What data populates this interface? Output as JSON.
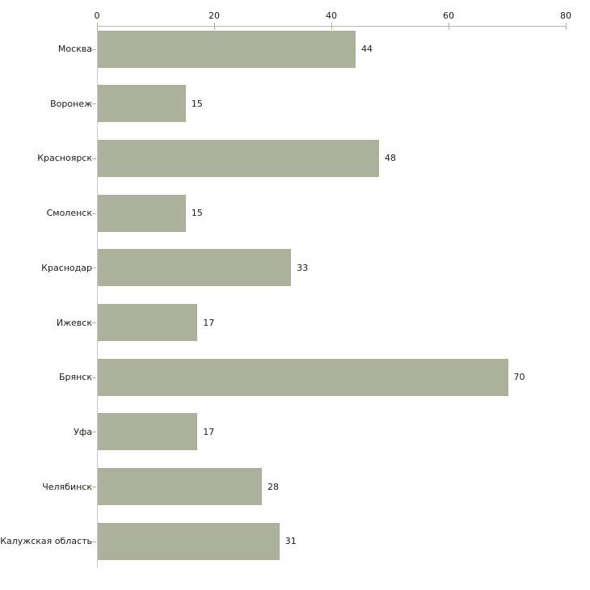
{
  "chart_data": {
    "type": "bar",
    "orientation": "horizontal",
    "title": "",
    "xlabel": "",
    "ylabel": "",
    "categories": [
      "Москва",
      "Воронеж",
      "Красноярск",
      "Смоленск",
      "Краснодар",
      "Ижевск",
      "Брянск",
      "Уфа",
      "Челябинск",
      "Калужская область"
    ],
    "values": [
      44,
      15,
      48,
      15,
      33,
      17,
      70,
      17,
      28,
      31
    ],
    "value_labels": [
      "44",
      "15",
      "48",
      "15",
      "33",
      "17",
      "70",
      "17",
      "28",
      "31"
    ],
    "xlim": [
      0,
      80
    ],
    "x_ticks": [
      "0",
      "20",
      "40",
      "60",
      "80"
    ],
    "x_tick_values": [
      0,
      20,
      40,
      60,
      80
    ],
    "x_axis_position": "top",
    "grid": false,
    "legend": false,
    "colors": {
      "bar": "#abb19a",
      "x_axis_line": "#b8b8b8",
      "y_axis_line": "#c9c9c9",
      "tick": "#b6b68c",
      "text": "#1a1a1a",
      "background": "#ffffff"
    }
  }
}
